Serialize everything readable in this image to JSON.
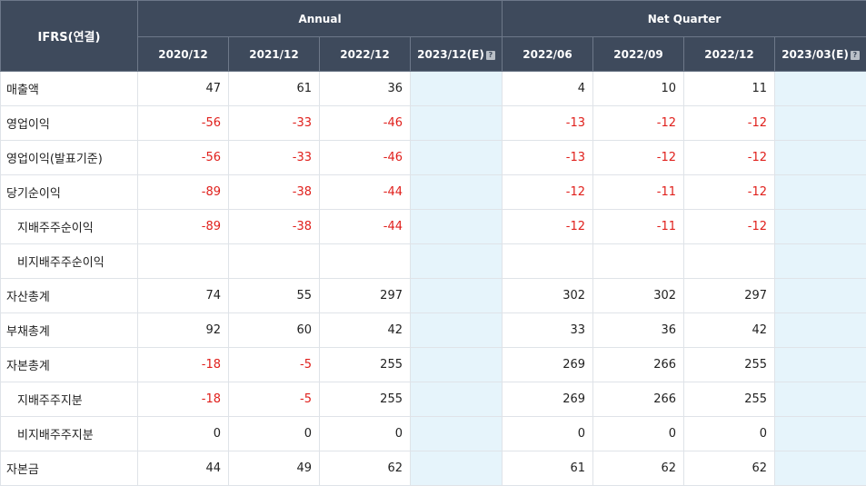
{
  "header": {
    "corner_label": "IFRS(연결)",
    "group_annual": "Annual",
    "group_quarter": "Net Quarter",
    "periods": [
      "2020/12",
      "2021/12",
      "2022/12",
      "2023/12(E)",
      "2022/06",
      "2022/09",
      "2022/12",
      "2023/03(E)"
    ]
  },
  "rows": [
    {
      "label": "매출액",
      "sub": false,
      "values": [
        "47",
        "61",
        "36",
        "",
        "4",
        "10",
        "11",
        ""
      ]
    },
    {
      "label": "영업이익",
      "sub": false,
      "values": [
        "-56",
        "-33",
        "-46",
        "",
        "-13",
        "-12",
        "-12",
        ""
      ]
    },
    {
      "label": "영업이익(발표기준)",
      "sub": false,
      "values": [
        "-56",
        "-33",
        "-46",
        "",
        "-13",
        "-12",
        "-12",
        ""
      ]
    },
    {
      "label": "당기순이익",
      "sub": false,
      "values": [
        "-89",
        "-38",
        "-44",
        "",
        "-12",
        "-11",
        "-12",
        ""
      ]
    },
    {
      "label": "지배주주순이익",
      "sub": true,
      "values": [
        "-89",
        "-38",
        "-44",
        "",
        "-12",
        "-11",
        "-12",
        ""
      ]
    },
    {
      "label": "비지배주주순이익",
      "sub": true,
      "values": [
        "",
        "",
        "",
        "",
        "",
        "",
        "",
        ""
      ]
    },
    {
      "label": "자산총계",
      "sub": false,
      "values": [
        "74",
        "55",
        "297",
        "",
        "302",
        "302",
        "297",
        ""
      ]
    },
    {
      "label": "부채총계",
      "sub": false,
      "values": [
        "92",
        "60",
        "42",
        "",
        "33",
        "36",
        "42",
        ""
      ]
    },
    {
      "label": "자본총계",
      "sub": false,
      "values": [
        "-18",
        "-5",
        "255",
        "",
        "269",
        "266",
        "255",
        ""
      ]
    },
    {
      "label": "지배주주지분",
      "sub": true,
      "values": [
        "-18",
        "-5",
        "255",
        "",
        "269",
        "266",
        "255",
        ""
      ]
    },
    {
      "label": "비지배주주지분",
      "sub": true,
      "values": [
        "0",
        "0",
        "0",
        "",
        "0",
        "0",
        "0",
        ""
      ]
    },
    {
      "label": "자본금",
      "sub": false,
      "values": [
        "44",
        "49",
        "62",
        "",
        "61",
        "62",
        "62",
        ""
      ]
    }
  ],
  "colors": {
    "header_bg": "#3e4a5c",
    "estimate_bg": "#e6f4fb",
    "negative": "#e0201c"
  },
  "icons": {
    "estimate_help": "help-square-icon"
  }
}
